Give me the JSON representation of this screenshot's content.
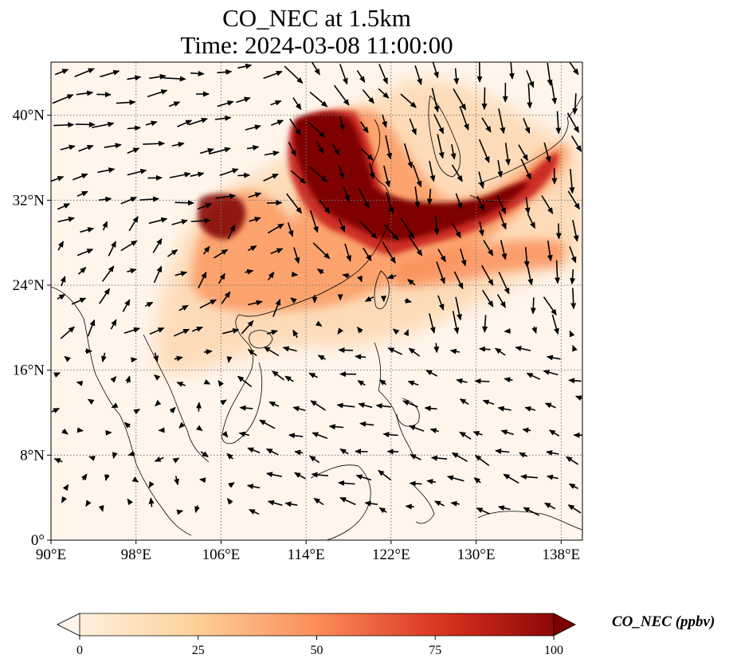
{
  "title": {
    "line1": "CO_NEC at 1.5km",
    "line2": "Time: 2024-03-08 11:00:00"
  },
  "map": {
    "lon_range": [
      90,
      140
    ],
    "lat_range": [
      0,
      45
    ],
    "lon_ticks": [
      90,
      98,
      106,
      114,
      122,
      130,
      138
    ],
    "lat_ticks": [
      0,
      8,
      16,
      24,
      32,
      40
    ],
    "lon_tick_labels": [
      "90°E",
      "98°E",
      "106°E",
      "114°E",
      "122°E",
      "130°E",
      "138°E"
    ],
    "lat_tick_labels": [
      "0°",
      "8°N",
      "16°N",
      "24°N",
      "32°N",
      "40°N"
    ],
    "gridlines": true,
    "field": "CO_NEC",
    "colormap": "OrRd",
    "colors": {
      "low": "#fff5eb",
      "mid": "#fdae6b",
      "high": "#7f0000",
      "coast": "#000000",
      "grid": "#777777"
    }
  },
  "colorbar": {
    "label": "CO_NEC (ppbv)",
    "min": 0,
    "max": 100,
    "ticks": [
      0,
      25,
      50,
      75,
      100
    ],
    "tick_labels": [
      "0",
      "25",
      "50",
      "75",
      "100"
    ],
    "extend": "both"
  }
}
